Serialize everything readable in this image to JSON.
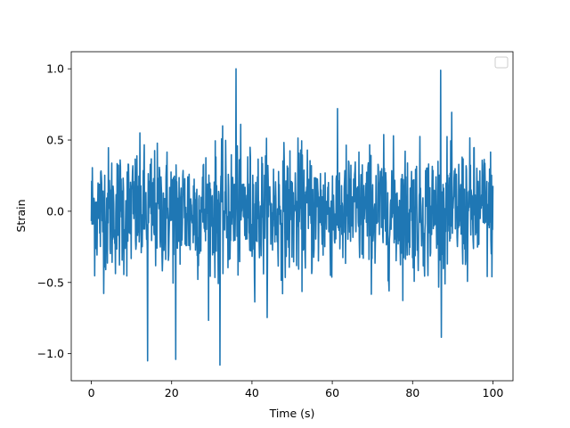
{
  "chart_data": {
    "type": "line",
    "title": "",
    "xlabel": "Time (s)",
    "ylabel": "Strain",
    "xlim": [
      -5,
      105
    ],
    "ylim": [
      -1.19,
      1.12
    ],
    "x_ticks": [
      0,
      20,
      40,
      60,
      80,
      100
    ],
    "x_tick_labels": [
      "0",
      "20",
      "40",
      "60",
      "80",
      "100"
    ],
    "y_ticks": [
      -1.0,
      -0.5,
      0.0,
      0.5,
      1.0
    ],
    "y_tick_labels": [
      "−1.0",
      "−0.5",
      "0.0",
      "0.5",
      "1.0"
    ],
    "grid": false,
    "legend": {
      "placement": "top-right",
      "entries": []
    },
    "series": [
      {
        "color": "#1f77b4",
        "x_start": 0,
        "x_end": 100,
        "n_points": 1200,
        "mean": 0.0,
        "std": 0.22,
        "max": 1.0,
        "min": -1.08,
        "notable_peaks": [
          {
            "x": 36,
            "y": 1.0
          },
          {
            "x": 87,
            "y": 0.99
          },
          {
            "x": 32,
            "y": -1.08
          },
          {
            "x": 14,
            "y": -1.05
          },
          {
            "x": 21,
            "y": -1.04
          }
        ]
      }
    ]
  }
}
